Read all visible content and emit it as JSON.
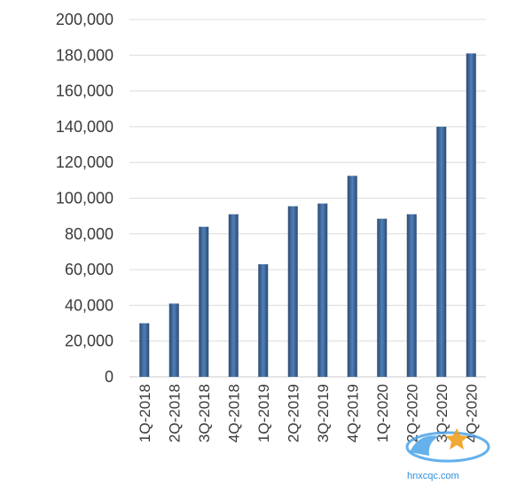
{
  "chart_data": {
    "type": "bar",
    "title": "",
    "xlabel": "",
    "ylabel": "",
    "categories": [
      "1Q-2018",
      "2Q-2018",
      "3Q-2018",
      "4Q-2018",
      "1Q-2019",
      "2Q-2019",
      "3Q-2019",
      "4Q-2019",
      "1Q-2020",
      "2Q-2020",
      "3Q-2020",
      "4Q-2020"
    ],
    "values": [
      30000,
      41000,
      84000,
      91000,
      63000,
      95500,
      97000,
      112500,
      88500,
      91000,
      140000,
      181000
    ],
    "ylim": [
      0,
      200000
    ],
    "yticks": [
      0,
      20000,
      40000,
      60000,
      80000,
      100000,
      120000,
      140000,
      160000,
      180000,
      200000
    ],
    "ytick_labels": [
      "0",
      "20,000",
      "40,000",
      "60,000",
      "80,000",
      "100,000",
      "120,000",
      "140,000",
      "160,000",
      "180,000",
      "200,000"
    ],
    "grid": true,
    "legend": "none",
    "colors": {
      "bar_dark": "#2c4a72",
      "bar_light": "#4f7fb8",
      "grid": "#dcdcdc",
      "axis": "#c8c8c8"
    }
  },
  "watermark": {
    "text": "hnxcqc.com"
  }
}
